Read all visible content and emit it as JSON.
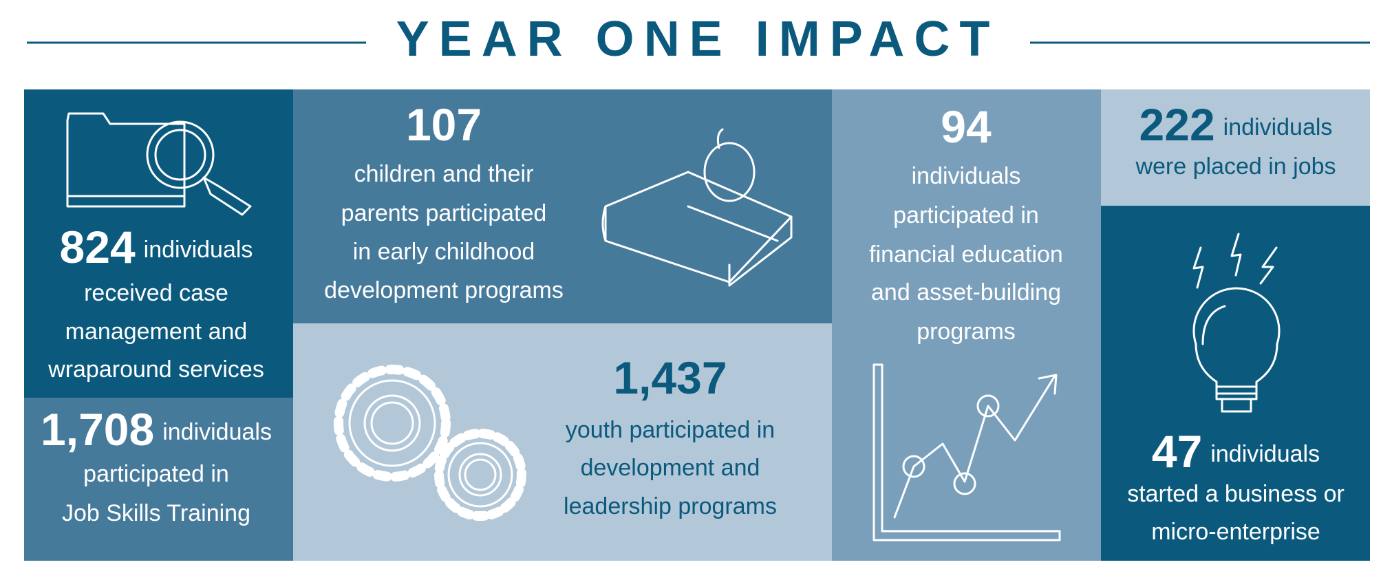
{
  "title": "YEAR ONE IMPACT",
  "stats": [
    {
      "number": "824",
      "lead": "individuals",
      "lines": [
        "received case",
        "management and",
        "wraparound services"
      ]
    },
    {
      "number": "1,708",
      "lead": "individuals",
      "lines": [
        "participated in",
        "Job Skills Training"
      ]
    },
    {
      "number": "107",
      "lines": [
        "children and their",
        "parents participated",
        "in early childhood",
        "development programs"
      ]
    },
    {
      "number": "1,437",
      "lines": [
        "youth participated in",
        "development and",
        "leadership programs"
      ]
    },
    {
      "number": "94",
      "lines": [
        "individuals",
        "participated in",
        "financial education",
        "and asset-building",
        "programs"
      ]
    },
    {
      "number": "222",
      "lead": "individuals",
      "lines": [
        "were placed in jobs"
      ]
    },
    {
      "number": "47",
      "lead": "individuals",
      "lines": [
        "started a business or",
        "micro-enterprise"
      ]
    }
  ]
}
